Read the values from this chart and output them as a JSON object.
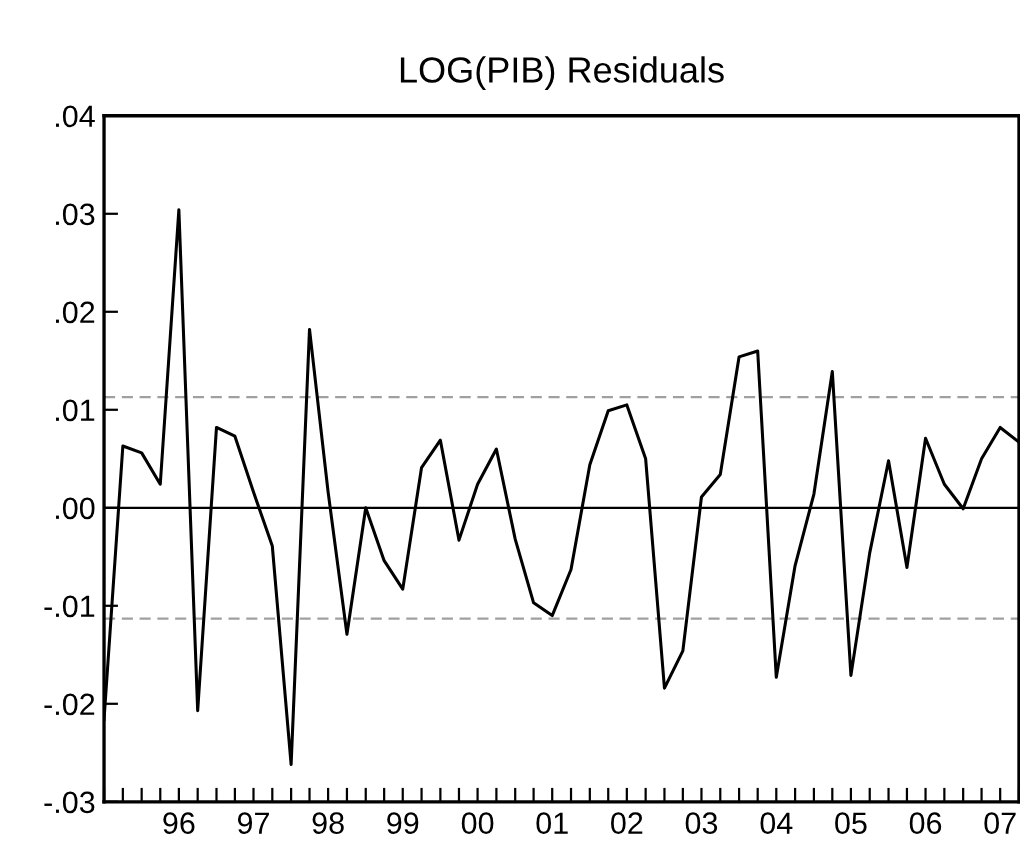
{
  "chart_data": {
    "type": "line",
    "title": "LOG(PIB) Residuals",
    "x": [
      "1995-07",
      "1995-10",
      "1996-01",
      "1996-04",
      "1996-07",
      "1996-10",
      "1997-01",
      "1997-04",
      "1997-07",
      "1997-10",
      "1998-01",
      "1998-04",
      "1998-07",
      "1998-10",
      "1999-01",
      "1999-04",
      "1999-07",
      "1999-10",
      "2000-01",
      "2000-04",
      "2000-07",
      "2000-10",
      "2001-01",
      "2001-04",
      "2001-07",
      "2001-10",
      "2002-01",
      "2002-04",
      "2002-07",
      "2002-10",
      "2003-01",
      "2003-04",
      "2003-07",
      "2003-10",
      "2004-01",
      "2004-04",
      "2004-07",
      "2004-10",
      "2005-01",
      "2005-04",
      "2005-07",
      "2005-10",
      "2006-01",
      "2006-04",
      "2006-07",
      "2006-10",
      "2007-01",
      "2007-04",
      "2007-07",
      "2007-10"
    ],
    "series": [
      {
        "color": "#000000",
        "values": [
          -0.0216,
          0.0063,
          0.0056,
          0.0024,
          0.0304,
          -0.0207,
          0.0082,
          0.0073,
          0.0016,
          -0.0039,
          -0.0262,
          0.0182,
          0.0016,
          -0.0129,
          0.0,
          -0.0054,
          -0.0083,
          0.0041,
          0.0069,
          -0.0033,
          0.0024,
          0.006,
          -0.0032,
          -0.0097,
          -0.011,
          -0.0063,
          0.0044,
          0.0099,
          0.0105,
          0.005,
          -0.0184,
          -0.0146,
          0.0011,
          0.0034,
          0.0154,
          0.016,
          -0.0173,
          -0.0059,
          0.0014,
          0.0139,
          -0.0171,
          -0.0046,
          0.0048,
          -0.0061,
          0.0071,
          0.0024,
          -0.0001,
          0.005,
          0.0082,
          0.0067
        ]
      }
    ],
    "xlim": [
      "1995-07",
      "2007-10"
    ],
    "xticks": [
      {
        "value": "1995-07",
        "label": null
      },
      {
        "value": "1995-10",
        "label": null
      },
      {
        "value": "1996-01",
        "label": null
      },
      {
        "value": "1996-04",
        "label": null
      },
      {
        "value": "1996-07",
        "label": "96"
      },
      {
        "value": "1996-10",
        "label": null
      },
      {
        "value": "1997-01",
        "label": null
      },
      {
        "value": "1997-04",
        "label": null
      },
      {
        "value": "1997-07",
        "label": "97"
      },
      {
        "value": "1997-10",
        "label": null
      },
      {
        "value": "1998-01",
        "label": null
      },
      {
        "value": "1998-04",
        "label": null
      },
      {
        "value": "1998-07",
        "label": "98"
      },
      {
        "value": "1998-10",
        "label": null
      },
      {
        "value": "1999-01",
        "label": null
      },
      {
        "value": "1999-04",
        "label": null
      },
      {
        "value": "1999-07",
        "label": "99"
      },
      {
        "value": "1999-10",
        "label": null
      },
      {
        "value": "2000-01",
        "label": null
      },
      {
        "value": "2000-04",
        "label": null
      },
      {
        "value": "2000-07",
        "label": "00"
      },
      {
        "value": "2000-10",
        "label": null
      },
      {
        "value": "2001-01",
        "label": null
      },
      {
        "value": "2001-04",
        "label": null
      },
      {
        "value": "2001-07",
        "label": "01"
      },
      {
        "value": "2001-10",
        "label": null
      },
      {
        "value": "2002-01",
        "label": null
      },
      {
        "value": "2002-04",
        "label": null
      },
      {
        "value": "2002-07",
        "label": "02"
      },
      {
        "value": "2002-10",
        "label": null
      },
      {
        "value": "2003-01",
        "label": null
      },
      {
        "value": "2003-04",
        "label": null
      },
      {
        "value": "2003-07",
        "label": "03"
      },
      {
        "value": "2003-10",
        "label": null
      },
      {
        "value": "2004-01",
        "label": null
      },
      {
        "value": "2004-04",
        "label": null
      },
      {
        "value": "2004-07",
        "label": "04"
      },
      {
        "value": "2004-10",
        "label": null
      },
      {
        "value": "2005-01",
        "label": null
      },
      {
        "value": "2005-04",
        "label": null
      },
      {
        "value": "2005-07",
        "label": "05"
      },
      {
        "value": "2005-10",
        "label": null
      },
      {
        "value": "2006-01",
        "label": null
      },
      {
        "value": "2006-04",
        "label": null
      },
      {
        "value": "2006-07",
        "label": "06"
      },
      {
        "value": "2006-10",
        "label": null
      },
      {
        "value": "2007-01",
        "label": null
      },
      {
        "value": "2007-04",
        "label": null
      },
      {
        "value": "2007-07",
        "label": "07"
      },
      {
        "value": "2007-10",
        "label": null
      }
    ],
    "ylim": [
      -0.03,
      0.04
    ],
    "yticks": [
      {
        "value": -0.03,
        "label": "-.03"
      },
      {
        "value": -0.02,
        "label": "-.02"
      },
      {
        "value": -0.01,
        "label": "-.01"
      },
      {
        "value": 0.0,
        "label": ".00"
      },
      {
        "value": 0.01,
        "label": ".01"
      },
      {
        "value": 0.02,
        "label": ".02"
      },
      {
        "value": 0.03,
        "label": ".03"
      },
      {
        "value": 0.04,
        "label": ".04"
      }
    ],
    "ref_lines": [
      {
        "axis": "y",
        "value": 0.0,
        "color": "#000000",
        "line_style": "solid"
      },
      {
        "axis": "y",
        "value": 0.0113,
        "color": "#a0a0a0",
        "line_style": "dashed"
      },
      {
        "axis": "y",
        "value": -0.0113,
        "color": "#a0a0a0",
        "line_style": "dashed"
      }
    ],
    "grid": false,
    "marker": "none",
    "line_style": "solid"
  }
}
